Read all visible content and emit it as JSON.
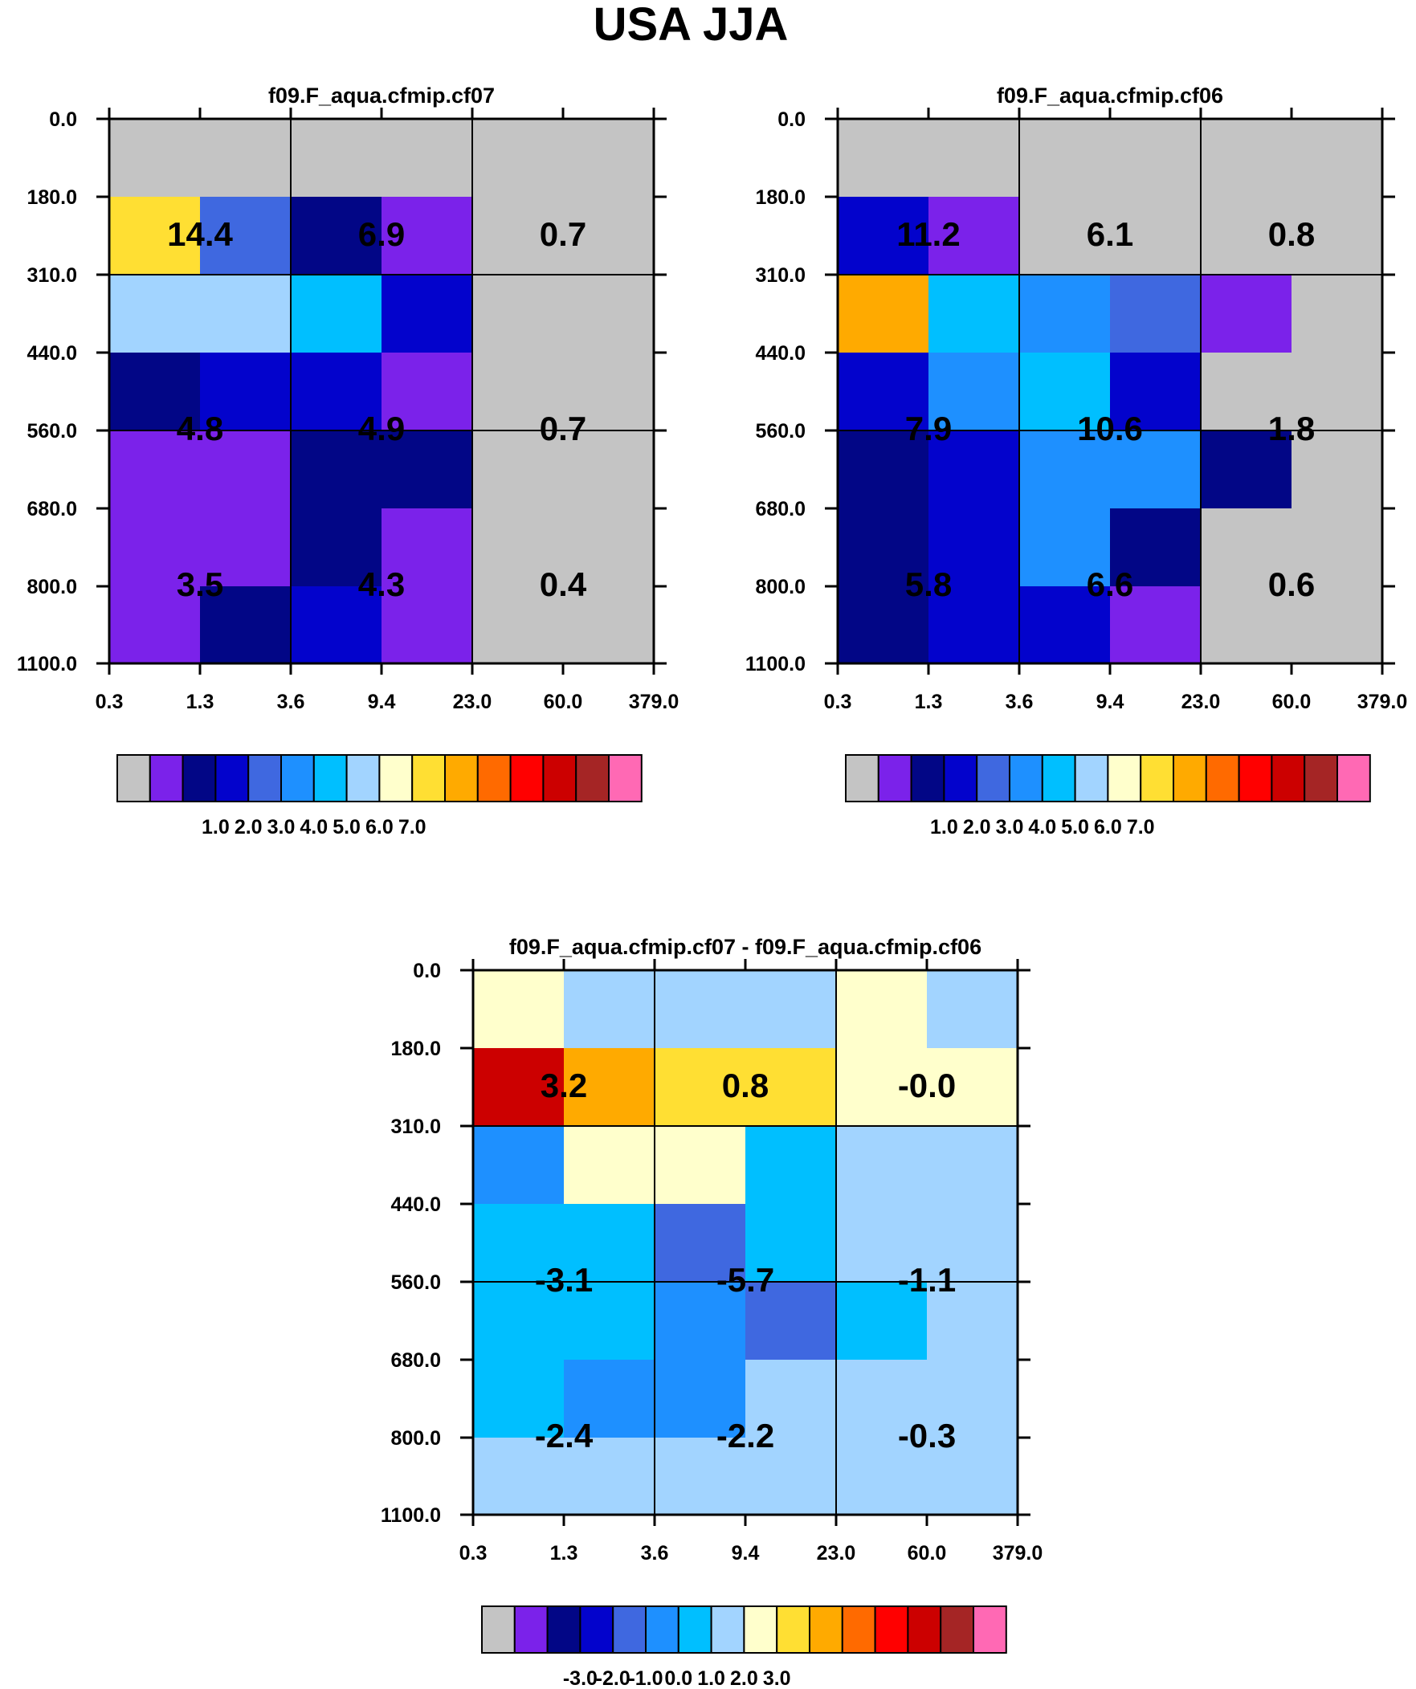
{
  "figure_title": "USA JJA",
  "palette": [
    "#c4c4c4",
    "#7b22ea",
    "#020686",
    "#0303cc",
    "#3f68e0",
    "#1e90ff",
    "#00bfff",
    "#a2d4ff",
    "#ffffcc",
    "#ffdf33",
    "#ffaa00",
    "#ff6a00",
    "#ff0000",
    "#cc0000",
    "#a52525",
    "#ff69b4"
  ],
  "chart_data": [
    {
      "type": "heatmap",
      "title": "f09.F_aqua.cfmip.cf07",
      "x_ticks": [
        "0.3",
        "1.3",
        "3.6",
        "9.4",
        "23.0",
        "60.0",
        "379.0"
      ],
      "y_ticks": [
        "0.0",
        "180.0",
        "310.0",
        "440.0",
        "560.0",
        "680.0",
        "800.0",
        "1100.0"
      ],
      "cell_colors": [
        [
          0,
          0,
          0,
          0,
          0,
          0
        ],
        [
          9,
          4,
          2,
          1,
          0,
          0
        ],
        [
          7,
          7,
          6,
          3,
          0,
          0
        ],
        [
          2,
          3,
          3,
          1,
          0,
          0
        ],
        [
          1,
          1,
          2,
          2,
          0,
          0
        ],
        [
          1,
          1,
          2,
          1,
          0,
          0
        ],
        [
          1,
          2,
          3,
          1,
          0,
          0
        ]
      ],
      "box_values": [
        [
          "14.4",
          "6.9",
          "0.7"
        ],
        [
          "4.8",
          "4.9",
          "0.7"
        ],
        [
          "3.5",
          "4.3",
          "0.4"
        ]
      ],
      "colorbar_labels": [
        "1.0",
        "2.0",
        "3.0",
        "4.0",
        "5.0",
        "6.0",
        "7.0"
      ]
    },
    {
      "type": "heatmap",
      "title": "f09.F_aqua.cfmip.cf06",
      "x_ticks": [
        "0.3",
        "1.3",
        "3.6",
        "9.4",
        "23.0",
        "60.0",
        "379.0"
      ],
      "y_ticks": [
        "0.0",
        "180.0",
        "310.0",
        "440.0",
        "560.0",
        "680.0",
        "800.0",
        "1100.0"
      ],
      "cell_colors": [
        [
          0,
          0,
          0,
          0,
          0,
          0
        ],
        [
          3,
          1,
          0,
          0,
          0,
          0
        ],
        [
          10,
          6,
          5,
          4,
          1,
          0
        ],
        [
          3,
          5,
          6,
          3,
          0,
          0
        ],
        [
          2,
          3,
          5,
          5,
          2,
          0
        ],
        [
          2,
          3,
          5,
          2,
          0,
          0
        ],
        [
          2,
          3,
          3,
          1,
          0,
          0
        ]
      ],
      "box_values": [
        [
          "11.2",
          "6.1",
          "0.8"
        ],
        [
          "7.9",
          "10.6",
          "1.8"
        ],
        [
          "5.8",
          "6.6",
          "0.6"
        ]
      ],
      "colorbar_labels": [
        "1.0",
        "2.0",
        "3.0",
        "4.0",
        "5.0",
        "6.0",
        "7.0"
      ]
    },
    {
      "type": "heatmap",
      "title": "f09.F_aqua.cfmip.cf07 - f09.F_aqua.cfmip.cf06",
      "x_ticks": [
        "0.3",
        "1.3",
        "3.6",
        "9.4",
        "23.0",
        "60.0",
        "379.0"
      ],
      "y_ticks": [
        "0.0",
        "180.0",
        "310.0",
        "440.0",
        "560.0",
        "680.0",
        "800.0",
        "1100.0"
      ],
      "cell_colors": [
        [
          8,
          7,
          7,
          7,
          8,
          7
        ],
        [
          13,
          10,
          9,
          9,
          8,
          8
        ],
        [
          5,
          8,
          8,
          6,
          7,
          7
        ],
        [
          6,
          6,
          4,
          6,
          7,
          7
        ],
        [
          6,
          6,
          5,
          4,
          6,
          7
        ],
        [
          6,
          5,
          5,
          7,
          7,
          7
        ],
        [
          7,
          7,
          7,
          7,
          7,
          7
        ]
      ],
      "box_values": [
        [
          "3.2",
          "0.8",
          "-0.0"
        ],
        [
          "-3.1",
          "-5.7",
          "-1.1"
        ],
        [
          "-2.4",
          "-2.2",
          "-0.3"
        ]
      ],
      "colorbar_labels": [
        "-3.0",
        "-2.0",
        "-1.0",
        "0.0",
        "1.0",
        "2.0",
        "3.0"
      ]
    }
  ]
}
